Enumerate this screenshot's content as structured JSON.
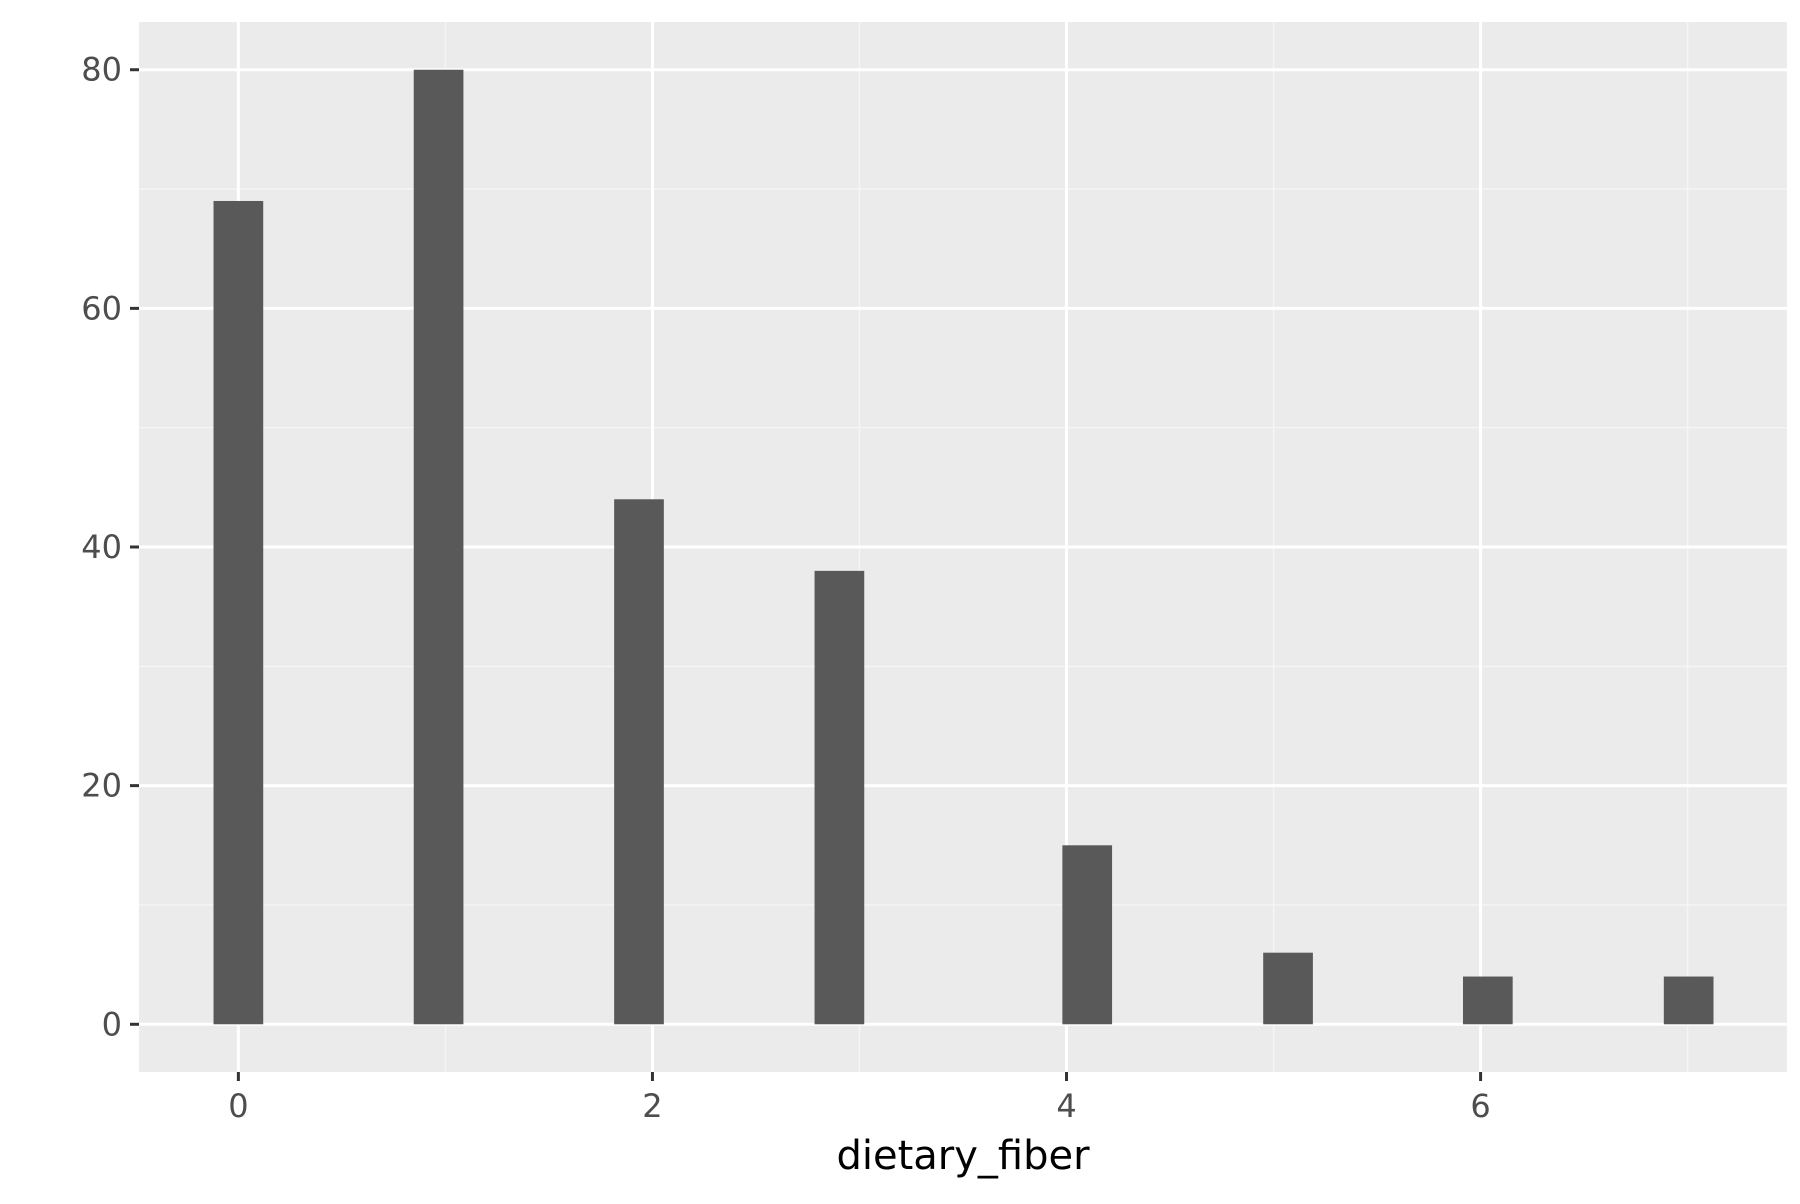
{
  "chart_data": {
    "type": "bar",
    "title": "",
    "xlabel": "dietary_fiber",
    "ylabel": "",
    "x": [
      0,
      0.967,
      1.935,
      2.903,
      4.1,
      5.07,
      6.035,
      7.005
    ],
    "values": [
      69,
      80,
      44,
      38,
      15,
      6,
      4,
      4
    ],
    "bar_width": 0.24,
    "xlim": [
      -0.48,
      7.48
    ],
    "ylim": [
      -4,
      84
    ],
    "x_ticks": [
      0,
      2,
      4,
      6
    ],
    "x_tick_labels": [
      "0",
      "2",
      "4",
      "6"
    ],
    "y_ticks": [
      0,
      20,
      40,
      60,
      80
    ],
    "y_tick_labels": [
      "0",
      "20",
      "40",
      "60",
      "80"
    ],
    "grid": true,
    "colors": {
      "panel_background": "#ebebeb",
      "grid_major": "#ffffff",
      "grid_minor": "#f5f5f5",
      "bar_fill": "#595959",
      "tick_text": "#4d4d4d",
      "axis_title": "#000000",
      "tick_mark": "#333333"
    }
  }
}
